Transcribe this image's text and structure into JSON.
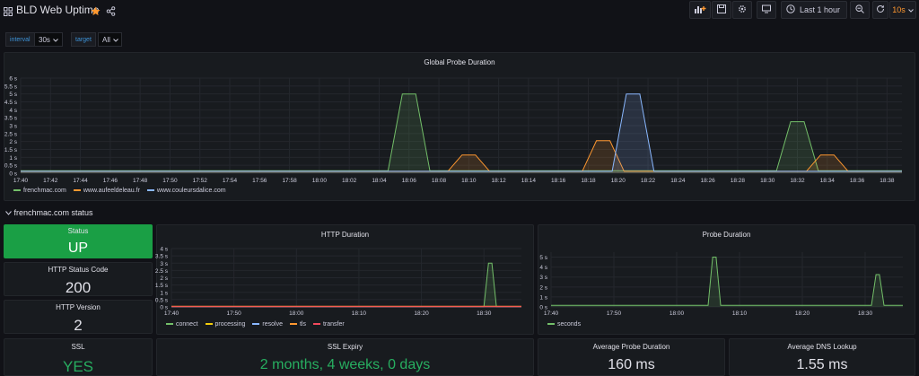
{
  "header": {
    "title": "BLD Web Uptime",
    "time_range": "Last 1 hour",
    "refresh": "10s"
  },
  "variables": [
    {
      "label": "interval",
      "value": "30s"
    },
    {
      "label": "target",
      "value": "All"
    }
  ],
  "row": {
    "title": "frenchmac.com status"
  },
  "panels": {
    "global_probe": {
      "title": "Global Probe Duration"
    },
    "http_duration": {
      "title": "HTTP Duration"
    },
    "probe_duration": {
      "title": "Probe Duration"
    }
  },
  "stats": {
    "status": {
      "title": "Status",
      "value": "UP"
    },
    "http_status_code": {
      "title": "HTTP Status Code",
      "value": "200"
    },
    "http_version": {
      "title": "HTTP Version",
      "value": "2"
    },
    "ssl": {
      "title": "SSL",
      "value": "YES"
    },
    "ssl_expiry": {
      "title": "SSL Expiry",
      "value": "2 months, 4 weeks, 0 days"
    },
    "avg_probe": {
      "title": "Average Probe Duration",
      "value": "160 ms"
    },
    "avg_dns": {
      "title": "Average DNS Lookup",
      "value": "1.55 ms"
    }
  },
  "colors": {
    "green": "#73bf69",
    "yellow": "#f2cc0c",
    "orange": "#ff9830",
    "blue": "#5794f2",
    "red": "#f2495c",
    "cyan": "#8ab8ff",
    "status_bg": "#1a9f45",
    "ok_text": "#27ae60"
  },
  "chart_data": [
    {
      "type": "line",
      "title": "Global Probe Duration",
      "x": [
        "17:40",
        "17:42",
        "17:44",
        "17:46",
        "17:48",
        "17:50",
        "17:52",
        "17:54",
        "17:56",
        "17:58",
        "18:00",
        "18:02",
        "18:04",
        "18:06",
        "18:08",
        "18:10",
        "18:12",
        "18:14",
        "18:16",
        "18:18",
        "18:20",
        "18:22",
        "18:24",
        "18:26",
        "18:28",
        "18:30",
        "18:32",
        "18:34",
        "18:36",
        "18:38"
      ],
      "y_ticks": [
        "0 s",
        "0.5 s",
        "1 s",
        "1.5 s",
        "2 s",
        "2.5 s",
        "3 s",
        "3.5 s",
        "4 s",
        "4.5 s",
        "5 s",
        "5.5 s",
        "6 s"
      ],
      "ylim": [
        0,
        6
      ],
      "series": [
        {
          "name": "frenchmac.com",
          "color": "#73bf69",
          "peaks": [
            {
              "x": "18:06",
              "y": 5.0
            },
            {
              "x": "18:32",
              "y": 3.25
            }
          ],
          "base": 0.15
        },
        {
          "name": "www.aufeeldeleau.fr",
          "color": "#ff9830",
          "peaks": [
            {
              "x": "18:10",
              "y": 1.15
            },
            {
              "x": "18:19",
              "y": 2.05
            },
            {
              "x": "18:34",
              "y": 1.15
            }
          ],
          "base": 0.12
        },
        {
          "name": "www.couleursdalice.com",
          "color": "#8ab8ff",
          "peaks": [
            {
              "x": "18:21",
              "y": 5.0
            }
          ],
          "base": 0.12
        }
      ]
    },
    {
      "type": "line",
      "title": "HTTP Duration",
      "x": [
        "17:40",
        "17:50",
        "18:00",
        "18:10",
        "18:20",
        "18:30"
      ],
      "y_ticks": [
        "0 s",
        "0.5 s",
        "1 s",
        "1.5 s",
        "2 s",
        "2.5 s",
        "3 s",
        "3.5 s",
        "4 s"
      ],
      "ylim": [
        0,
        4
      ],
      "series": [
        {
          "name": "connect",
          "color": "#73bf69",
          "peaks": [
            {
              "x": "18:31",
              "y": 3.0
            }
          ],
          "base": 0.02
        },
        {
          "name": "processing",
          "color": "#f2cc0c",
          "peaks": [],
          "base": 0.03
        },
        {
          "name": "resolve",
          "color": "#8ab8ff",
          "peaks": [],
          "base": 0.01
        },
        {
          "name": "tls",
          "color": "#ff9830",
          "peaks": [],
          "base": 0.04
        },
        {
          "name": "transfer",
          "color": "#f2495c",
          "peaks": [],
          "base": 0.01
        }
      ]
    },
    {
      "type": "line",
      "title": "Probe Duration",
      "x": [
        "17:40",
        "17:50",
        "18:00",
        "18:10",
        "18:20",
        "18:30"
      ],
      "y_ticks": [
        "0 s",
        "1 s",
        "2 s",
        "3 s",
        "4 s",
        "5 s"
      ],
      "ylim": [
        0,
        5.5
      ],
      "series": [
        {
          "name": "seconds",
          "color": "#73bf69",
          "peaks": [
            {
              "x": "18:06",
              "y": 5.0
            },
            {
              "x": "18:32",
              "y": 3.25
            }
          ],
          "base": 0.15
        }
      ]
    }
  ]
}
